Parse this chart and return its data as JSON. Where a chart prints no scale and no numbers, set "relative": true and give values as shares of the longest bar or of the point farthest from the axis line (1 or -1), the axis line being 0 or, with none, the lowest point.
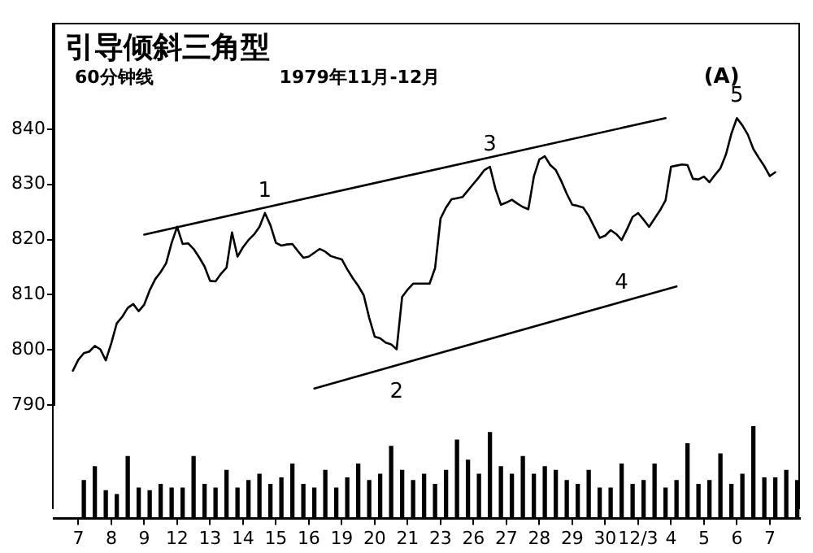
{
  "chart_data": [
    {
      "type": "line",
      "title": "引导倾斜三角型",
      "subtitle": "60分钟线",
      "annotations": [
        "1979年11月-12月",
        "(A)",
        {
          "text": "1",
          "y": 824.8
        },
        {
          "text": "2",
          "y": 800.1
        },
        {
          "text": "3",
          "y": 833.2
        },
        {
          "text": "4",
          "y": 819.9
        },
        {
          "text": "5",
          "y": 842
        }
      ],
      "series": [
        {
          "type": "line",
          "color": "#000000",
          "values": [
            null,
            null,
            null,
            796.2,
            798.2,
            799.4,
            799.7,
            800.7,
            800.1,
            798.1,
            801.2,
            804.8,
            806,
            807.6,
            808.3,
            807,
            808.2,
            810.8,
            812.8,
            814.1,
            815.7,
            819.4,
            822.3,
            819.2,
            819.3,
            818.3,
            816.8,
            815.1,
            812.5,
            812.4,
            813.8,
            814.9,
            821.3,
            816.9,
            818.6,
            819.9,
            820.9,
            822.3,
            824.8,
            822.6,
            819.4,
            818.9,
            819.1,
            819.2,
            817.9,
            816.7,
            816.9,
            817.6,
            818.3,
            817.8,
            817,
            816.7,
            816.4,
            814.6,
            813,
            811.6,
            809.9,
            805.8,
            802.4,
            802.1,
            801.3,
            801,
            800.1,
            809.6,
            810.9,
            812,
            812,
            812,
            812,
            814.8,
            823.8,
            825.8,
            827.3,
            827.5,
            827.7,
            828.9,
            830.1,
            831.3,
            832.6,
            833.2,
            829.2,
            826.3,
            826.7,
            827.2,
            826.5,
            825.9,
            825.5,
            831.4,
            834.5,
            835.1,
            833.5,
            832.6,
            830.6,
            828.3,
            826.3,
            826.1,
            825.8,
            824.3,
            822.3,
            820.3,
            820.7,
            821.7,
            821,
            819.9,
            821.9,
            824.1,
            824.8,
            823.6,
            822.3,
            823.8,
            825.3,
            827.1,
            833.2,
            833.4,
            833.6,
            833.5,
            831,
            830.9,
            831.4,
            830.4,
            831.7,
            832.9,
            835.4,
            839.2,
            842,
            840.7,
            839,
            836.4,
            834.8,
            833.3,
            831.5,
            832.2,
            null,
            null,
            null,
            null
          ]
        },
        {
          "type": "line",
          "color": "#000000",
          "values": [
            null,
            null,
            null,
            null,
            null,
            null,
            null,
            null,
            null,
            null,
            null,
            null,
            null,
            null,
            null,
            null,
            820.9,
            null,
            null,
            null,
            null,
            null,
            null,
            null,
            null,
            null,
            null,
            null,
            null,
            null,
            null,
            null,
            null,
            null,
            null,
            null,
            null,
            null,
            null,
            null,
            null,
            null,
            null,
            null,
            null,
            null,
            null,
            null,
            null,
            null,
            null,
            null,
            null,
            null,
            null,
            null,
            null,
            null,
            null,
            null,
            null,
            null,
            null,
            null,
            null,
            null,
            null,
            null,
            null,
            null,
            null,
            null,
            null,
            null,
            null,
            null,
            null,
            null,
            null,
            null,
            null,
            null,
            null,
            null,
            null,
            null,
            null,
            null,
            null,
            null,
            null,
            null,
            null,
            null,
            null,
            null,
            null,
            null,
            null,
            null,
            null,
            null,
            null,
            null,
            null,
            null,
            null,
            null,
            null,
            null,
            null,
            842,
            null,
            null,
            null,
            null,
            null,
            null,
            null,
            null,
            null,
            null,
            null,
            null,
            null,
            null,
            null,
            null,
            null,
            null,
            null,
            null,
            null,
            null,
            null,
            null
          ]
        },
        {
          "type": "line",
          "color": "#000000",
          "values": [
            null,
            null,
            null,
            null,
            null,
            null,
            null,
            null,
            null,
            null,
            null,
            null,
            null,
            null,
            null,
            null,
            null,
            null,
            null,
            null,
            null,
            null,
            null,
            null,
            null,
            null,
            null,
            null,
            null,
            null,
            null,
            null,
            null,
            null,
            null,
            null,
            null,
            null,
            null,
            null,
            null,
            null,
            null,
            null,
            null,
            null,
            null,
            793,
            null,
            null,
            null,
            null,
            null,
            null,
            null,
            null,
            null,
            null,
            null,
            null,
            null,
            null,
            null,
            null,
            null,
            null,
            null,
            null,
            null,
            null,
            null,
            null,
            null,
            null,
            null,
            null,
            null,
            null,
            null,
            null,
            null,
            null,
            null,
            null,
            null,
            null,
            null,
            null,
            null,
            null,
            null,
            null,
            null,
            null,
            null,
            null,
            null,
            null,
            null,
            null,
            null,
            null,
            null,
            null,
            null,
            null,
            null,
            null,
            null,
            null,
            null,
            null,
            null,
            811.5,
            null,
            null,
            null,
            null,
            null,
            null,
            null,
            null,
            null,
            null,
            null,
            null,
            null,
            null,
            null,
            null,
            null,
            null,
            null,
            null,
            null,
            null
          ]
        }
      ],
      "ylim": [
        790,
        859
      ],
      "yticks": [
        790,
        800,
        810,
        820,
        830,
        840
      ],
      "tick_labels": "y",
      "grid": false,
      "legend": false
    },
    {
      "type": "bar",
      "relative": true,
      "color": "#000000",
      "categories": [
        null,
        null,
        null,
        null,
        "7",
        null,
        null,
        null,
        null,
        null,
        "8",
        null,
        null,
        null,
        null,
        null,
        "9",
        null,
        null,
        null,
        null,
        null,
        "12",
        null,
        null,
        null,
        null,
        null,
        "13",
        null,
        null,
        null,
        null,
        null,
        "14",
        null,
        null,
        null,
        null,
        null,
        "15",
        null,
        null,
        null,
        null,
        null,
        "16",
        null,
        null,
        null,
        null,
        null,
        "19",
        null,
        null,
        null,
        null,
        null,
        "20",
        null,
        null,
        null,
        null,
        null,
        "21",
        null,
        null,
        null,
        null,
        null,
        "23",
        null,
        null,
        null,
        null,
        null,
        "26",
        null,
        null,
        null,
        null,
        null,
        "27",
        null,
        null,
        null,
        null,
        null,
        "28",
        null,
        null,
        null,
        null,
        null,
        "29",
        null,
        null,
        null,
        null,
        null,
        "30",
        null,
        null,
        null,
        null,
        null,
        "12/3",
        null,
        null,
        null,
        null,
        null,
        "4",
        null,
        null,
        null,
        null,
        null,
        "5",
        null,
        null,
        null,
        null,
        null,
        "6",
        null,
        null,
        null,
        null,
        null,
        "7",
        null,
        null,
        null,
        null,
        null
      ],
      "values": [
        null,
        null,
        null,
        null,
        null,
        0.41,
        null,
        0.56,
        null,
        0.3,
        null,
        0.26,
        null,
        0.67,
        null,
        0.33,
        null,
        0.3,
        null,
        0.37,
        null,
        0.33,
        null,
        0.33,
        null,
        0.67,
        null,
        0.37,
        null,
        0.33,
        null,
        0.52,
        null,
        0.33,
        null,
        0.41,
        null,
        0.48,
        null,
        0.37,
        null,
        0.44,
        null,
        0.59,
        null,
        0.37,
        null,
        0.33,
        null,
        0.52,
        null,
        0.33,
        null,
        0.44,
        null,
        0.59,
        null,
        0.41,
        null,
        0.48,
        null,
        0.78,
        null,
        0.52,
        null,
        0.41,
        null,
        0.48,
        null,
        0.37,
        null,
        0.52,
        null,
        0.85,
        null,
        0.63,
        null,
        0.48,
        null,
        0.93,
        null,
        0.56,
        null,
        0.48,
        null,
        0.67,
        null,
        0.48,
        null,
        0.56,
        null,
        0.52,
        null,
        0.41,
        null,
        0.37,
        null,
        0.52,
        null,
        0.33,
        null,
        0.33,
        null,
        0.59,
        null,
        0.37,
        null,
        0.41,
        null,
        0.59,
        null,
        0.33,
        null,
        0.41,
        null,
        0.81,
        null,
        0.37,
        null,
        0.41,
        null,
        0.7,
        null,
        0.37,
        null,
        0.48,
        null,
        1,
        null,
        0.44,
        null,
        0.44,
        null,
        0.52,
        null,
        0.41
      ],
      "grid": false
    }
  ]
}
